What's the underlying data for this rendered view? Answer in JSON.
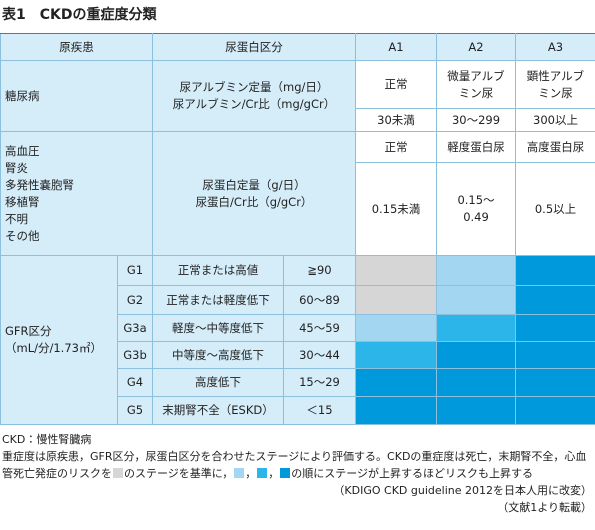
{
  "title": "表1　CKDの重症度分類",
  "table": {
    "header": [
      "原疾患",
      "尿蛋白区分",
      "A1",
      "A2",
      "A3"
    ],
    "diseases": [
      {
        "names": [
          "糖尿病"
        ],
        "measure": [
          "尿アルブミン定量（mg/日）",
          "尿アルブミン/Cr比（mg/gCr）"
        ],
        "labels": [
          [
            "正常"
          ],
          [
            "微量アルブ",
            "ミン尿"
          ],
          [
            "顕性アルブ",
            "ミン尿"
          ]
        ],
        "ranges": [
          [
            "30未満"
          ],
          [
            "30～299"
          ],
          [
            "300以上"
          ]
        ]
      },
      {
        "names": [
          "高血圧",
          "腎炎",
          "多発性嚢胞腎",
          "移植腎",
          "不明",
          "その他"
        ],
        "measure": [
          "尿蛋白定量（g/日）",
          "尿蛋白/Cr比（g/gCr）"
        ],
        "labels": [
          [
            "正常"
          ],
          [
            "軽度蛋白尿"
          ],
          [
            "高度蛋白尿"
          ]
        ],
        "ranges": [
          [
            "0.15未満"
          ],
          [
            "0.15～",
            "0.49"
          ],
          [
            "0.5以上"
          ]
        ]
      }
    ],
    "gfr_label": [
      "GFR区分",
      "（mL/分/1.73㎡）"
    ],
    "grades": [
      {
        "code": "G1",
        "desc": "正常または高値",
        "range": "≧90",
        "colors": [
          "#d6d6d6",
          "#a3d7f1",
          "#0099dc"
        ]
      },
      {
        "code": "G2",
        "desc": "正常または軽度低下",
        "range": "60～89",
        "colors": [
          "#d6d6d6",
          "#a3d7f1",
          "#0099dc"
        ]
      },
      {
        "code": "G3a",
        "desc": "軽度～中等度低下",
        "range": "45～59",
        "colors": [
          "#a3d7f1",
          "#2bb5e9",
          "#0099dc"
        ]
      },
      {
        "code": "G3b",
        "desc": "中等度～高度低下",
        "range": "30～44",
        "colors": [
          "#2bb5e9",
          "#0099dc",
          "#0099dc"
        ]
      },
      {
        "code": "G4",
        "desc": "高度低下",
        "range": "15～29",
        "colors": [
          "#0099dc",
          "#0099dc",
          "#0099dc"
        ]
      },
      {
        "code": "G5",
        "desc": "末期腎不全（ESKD）",
        "range": "＜15",
        "colors": [
          "#0099dc",
          "#0099dc",
          "#0099dc"
        ]
      }
    ]
  },
  "notes": {
    "abbr": "CKD：慢性腎臓病",
    "parts": [
      "重症度は原疾患，GFR区分，尿蛋白区分を合わせたステージにより評価する。CKDの重症度は死亡，末期腎不全，心血管死亡発症のリスクを",
      "のステージを基準に，",
      "，",
      "，",
      "の順にステージが上昇するほどリスクも上昇する"
    ],
    "swatches": [
      "#d6d6d6",
      "#a3d7f1",
      "#2bb5e9",
      "#0099dc"
    ],
    "source": "（KDIGO CKD guideline 2012を日本人用に改変）",
    "ref": "（文献1より転載）"
  }
}
